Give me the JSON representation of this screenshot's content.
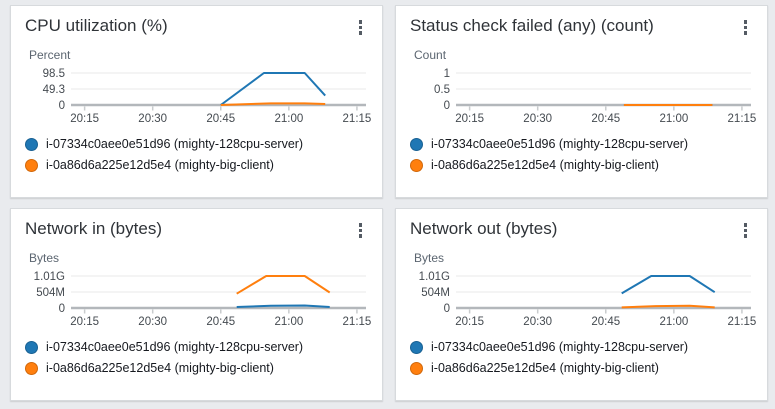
{
  "page": {
    "background": "#e9ebee"
  },
  "colors": {
    "series_blue": "#1f77b4",
    "series_orange": "#ff7f0e",
    "grid_line": "#e8e8e8",
    "zero_axis": "#b3b7bb",
    "tick_mark": "#c9ccce",
    "tick_text": "#444a50",
    "kebab_icon": "#545b64"
  },
  "menu_tooltip": "Widget menu",
  "chart_data": [
    {
      "type": "line",
      "title": "CPU utilization (%)",
      "ylabel": "Percent",
      "x_domain_minutes": [
        12,
        77
      ],
      "x_ticks": [
        {
          "minute": 15,
          "label": "20:15"
        },
        {
          "minute": 30,
          "label": "20:30"
        },
        {
          "minute": 45,
          "label": "20:45"
        },
        {
          "minute": 60,
          "label": "21:00"
        },
        {
          "minute": 75,
          "label": "21:15"
        }
      ],
      "y_ticks": [
        {
          "label": "0",
          "value": 0
        },
        {
          "label": "49.3",
          "value": 49.3
        },
        {
          "label": "98.5",
          "value": 98.5
        }
      ],
      "series": [
        {
          "name": "i-07334c0aee0e51d96 (mighty-128cpu-server)",
          "color": "#1f77b4",
          "points": [
            [
              45,
              0
            ],
            [
              54.5,
              98.5
            ],
            [
              63.5,
              98.5
            ],
            [
              68,
              29
            ]
          ]
        },
        {
          "name": "i-0a86d6a225e12d5e4 (mighty-big-client)",
          "color": "#ff7f0e",
          "points": [
            [
              45,
              0
            ],
            [
              50,
              2.5
            ],
            [
              56,
              5
            ],
            [
              63.5,
              5
            ],
            [
              68,
              3
            ]
          ]
        }
      ]
    },
    {
      "type": "line",
      "title": "Status check failed (any) (count)",
      "ylabel": "Count",
      "x_domain_minutes": [
        12,
        77
      ],
      "x_ticks": [
        {
          "minute": 15,
          "label": "20:15"
        },
        {
          "minute": 30,
          "label": "20:30"
        },
        {
          "minute": 45,
          "label": "20:45"
        },
        {
          "minute": 60,
          "label": "21:00"
        },
        {
          "minute": 75,
          "label": "21:15"
        }
      ],
      "y_ticks": [
        {
          "label": "0",
          "value": 0
        },
        {
          "label": "0.5",
          "value": 0.5
        },
        {
          "label": "1",
          "value": 1
        }
      ],
      "series": [
        {
          "name": "i-07334c0aee0e51d96 (mighty-128cpu-server)",
          "color": "#1f77b4",
          "points": [
            [
              49,
              0
            ],
            [
              68.5,
              0
            ]
          ]
        },
        {
          "name": "i-0a86d6a225e12d5e4 (mighty-big-client)",
          "color": "#ff7f0e",
          "points": [
            [
              49,
              0
            ],
            [
              68.5,
              0
            ]
          ]
        }
      ]
    },
    {
      "type": "line",
      "title": "Network in (bytes)",
      "ylabel": "Bytes",
      "x_domain_minutes": [
        12,
        77
      ],
      "x_ticks": [
        {
          "minute": 15,
          "label": "20:15"
        },
        {
          "minute": 30,
          "label": "20:30"
        },
        {
          "minute": 45,
          "label": "20:45"
        },
        {
          "minute": 60,
          "label": "21:00"
        },
        {
          "minute": 75,
          "label": "21:15"
        }
      ],
      "y_ticks": [
        {
          "label": "0",
          "value": 0
        },
        {
          "label": "504M",
          "value": 504000000
        },
        {
          "label": "1.01G",
          "value": 1010000000
        }
      ],
      "series": [
        {
          "name": "i-07334c0aee0e51d96 (mighty-128cpu-server)",
          "color": "#1f77b4",
          "points": [
            [
              48.5,
              30000000
            ],
            [
              56,
              70000000
            ],
            [
              63.5,
              80000000
            ],
            [
              69,
              30000000
            ]
          ]
        },
        {
          "name": "i-0a86d6a225e12d5e4 (mighty-big-client)",
          "color": "#ff7f0e",
          "points": [
            [
              48.5,
              450000000
            ],
            [
              55,
              1010000000
            ],
            [
              63.5,
              1010000000
            ],
            [
              69,
              490000000
            ]
          ]
        }
      ]
    },
    {
      "type": "line",
      "title": "Network out (bytes)",
      "ylabel": "Bytes",
      "x_domain_minutes": [
        12,
        77
      ],
      "x_ticks": [
        {
          "minute": 15,
          "label": "20:15"
        },
        {
          "minute": 30,
          "label": "20:30"
        },
        {
          "minute": 45,
          "label": "20:45"
        },
        {
          "minute": 60,
          "label": "21:00"
        },
        {
          "minute": 75,
          "label": "21:15"
        }
      ],
      "y_ticks": [
        {
          "label": "0",
          "value": 0
        },
        {
          "label": "504M",
          "value": 504000000
        },
        {
          "label": "1.01G",
          "value": 1010000000
        }
      ],
      "series": [
        {
          "name": "i-07334c0aee0e51d96 (mighty-128cpu-server)",
          "color": "#1f77b4",
          "points": [
            [
              48.5,
              460000000
            ],
            [
              55,
              1010000000
            ],
            [
              63.5,
              1010000000
            ],
            [
              69,
              500000000
            ]
          ]
        },
        {
          "name": "i-0a86d6a225e12d5e4 (mighty-big-client)",
          "color": "#ff7f0e",
          "points": [
            [
              48.5,
              20000000
            ],
            [
              56,
              60000000
            ],
            [
              63.5,
              70000000
            ],
            [
              69,
              20000000
            ]
          ]
        }
      ]
    }
  ]
}
